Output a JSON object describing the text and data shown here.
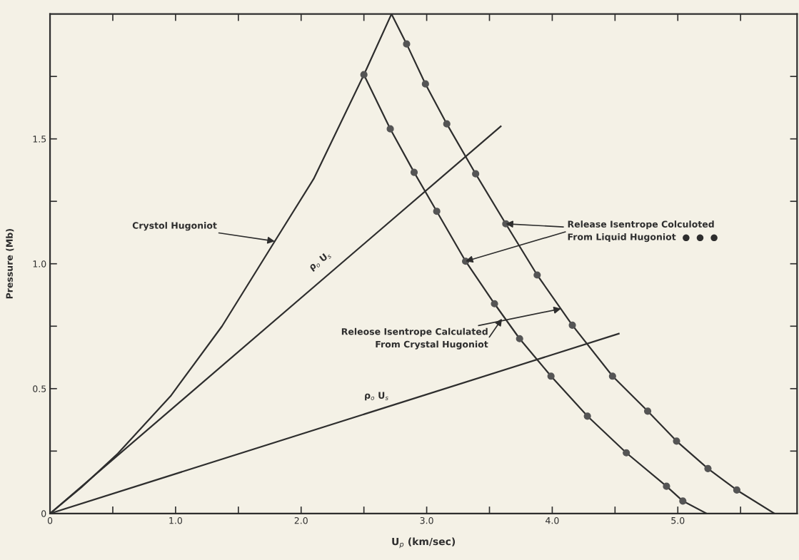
{
  "chart_data": {
    "type": "line",
    "xlabel": "U$_{p}$ (km/sec)",
    "ylabel": "Pressure (Mb)",
    "xlim": [
      0,
      5.95
    ],
    "ylim": [
      0,
      2.0
    ],
    "xticks": [
      0,
      {
        "value": 0.5,
        "label": null
      },
      {
        "value": 1.0,
        "label": "1.0"
      },
      {
        "value": 1.5,
        "label": null
      },
      {
        "value": 2.0,
        "label": "2.0"
      },
      {
        "value": 2.5,
        "label": null
      },
      {
        "value": 3.0,
        "label": "3.0"
      },
      {
        "value": 3.5,
        "label": null
      },
      {
        "value": 4.0,
        "label": "4.0"
      },
      {
        "value": 4.5,
        "label": null
      },
      {
        "value": 5.0,
        "label": "5.0"
      },
      {
        "value": 5.5,
        "label": null
      }
    ],
    "yticks": [
      0,
      {
        "value": 0.25,
        "label": null
      },
      0.5,
      {
        "value": 0.75,
        "label": null
      },
      {
        "value": 1.0,
        "label": "1.0"
      },
      {
        "value": 1.25,
        "label": null
      },
      1.5,
      {
        "value": 1.75,
        "label": null
      }
    ],
    "grid": false,
    "series": [
      {
        "color": "#2e2e2e",
        "marker": "none",
        "x": [
          0,
          0.25,
          0.54,
          0.96,
          1.37,
          1.79,
          2.1,
          2.5,
          2.72
        ],
        "values": [
          0,
          0.105,
          0.24,
          0.47,
          0.75,
          1.09,
          1.34,
          1.757,
          2.0
        ]
      },
      {
        "color": "#2e2e2e",
        "marker": "none",
        "x": [
          0,
          3.59
        ],
        "values": [
          0,
          1.55
        ]
      },
      {
        "color": "#2e2e2e",
        "marker": "none",
        "x": [
          0,
          4.53
        ],
        "values": [
          0,
          0.72
        ]
      },
      {
        "color": "#2e2e2e",
        "marker": "none",
        "x": [
          2.5,
          2.71,
          2.9,
          3.08,
          3.31,
          3.54,
          3.74,
          3.99,
          4.28,
          4.59,
          4.91,
          5.04,
          5.23
        ],
        "values": [
          1.757,
          1.54,
          1.366,
          1.21,
          1.01,
          0.84,
          0.7,
          0.55,
          0.39,
          0.243,
          0.109,
          0.05,
          0
        ]
      },
      {
        "color": "#2e2e2e",
        "marker": "none",
        "x": [
          2.72,
          2.84,
          2.99,
          3.16,
          3.39,
          3.63,
          3.88,
          4.16,
          4.48,
          4.76,
          4.99,
          5.24,
          5.47,
          5.77
        ],
        "values": [
          2.0,
          1.88,
          1.72,
          1.56,
          1.36,
          1.16,
          0.955,
          0.754,
          0.55,
          0.41,
          0.29,
          0.18,
          0.094,
          0
        ]
      },
      {
        "type": "scatter",
        "color": "#555555",
        "marker": "circle",
        "x": [
          2.5,
          2.71,
          2.9,
          3.08,
          3.31,
          3.54,
          3.74,
          3.99,
          4.28,
          4.59,
          4.91,
          5.04
        ],
        "values": [
          1.757,
          1.54,
          1.366,
          1.21,
          1.01,
          0.84,
          0.7,
          0.55,
          0.39,
          0.243,
          0.109,
          0.05
        ]
      },
      {
        "type": "scatter",
        "color": "#555555",
        "marker": "circle",
        "x": [
          2.84,
          2.99,
          3.16,
          3.39,
          3.63,
          3.88,
          4.16,
          4.48,
          4.76,
          4.99,
          5.24,
          5.47
        ],
        "values": [
          1.88,
          1.72,
          1.56,
          1.36,
          1.16,
          0.955,
          0.754,
          0.55,
          0.41,
          0.29,
          0.18,
          0.094
        ]
      }
    ],
    "annotations": [
      {
        "text": "Crystol Hugoniot",
        "x": 1.79,
        "y": 1.09
      },
      {
        "text": "Release Isentrope Colculoted\nFrom Liquid Hugoniot  ●  ●  ●",
        "x": 3.63,
        "y": 1.16
      },
      {
        "text": "Releose Isentrope Calculated\nFrom Crystal Hugoniot",
        "x": 4.07,
        "y": 0.82
      },
      "ρ$_{o}$ U$_{s}$",
      "ρ$_{o}$ U$_{s}$"
    ]
  }
}
